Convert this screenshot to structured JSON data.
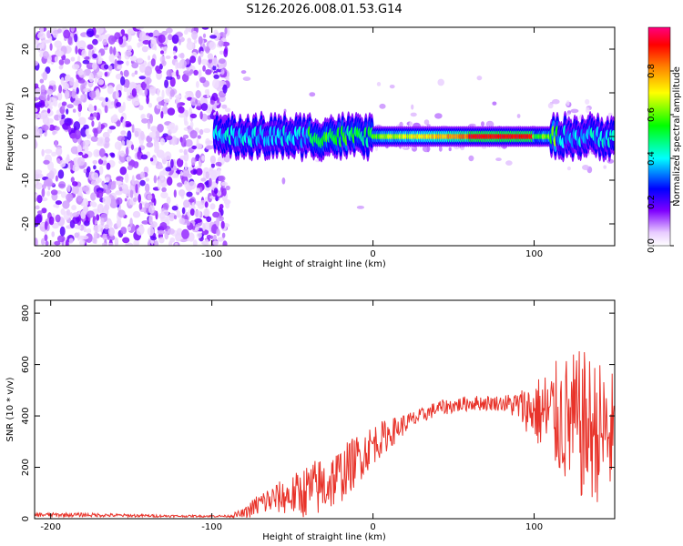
{
  "title": "S126.2026.008.01.53.G14",
  "chart_data": [
    {
      "type": "heatmap",
      "title": "S126.2026.008.01.53.G14",
      "xlabel": "Height of straight line (km)",
      "ylabel": "Frequency (Hz)",
      "xlim": [
        -210,
        150
      ],
      "ylim": [
        -25,
        25
      ],
      "xticks": [
        -200,
        -100,
        0,
        100
      ],
      "yticks": [
        20,
        10,
        0,
        -10,
        -20
      ],
      "colorbar": {
        "label": "Normalized spectral amplitude",
        "range": [
          0,
          1
        ],
        "ticks": [
          0.0,
          0.2,
          0.4,
          0.6,
          0.8
        ],
        "tick_labels": [
          "0.0",
          "0.2",
          "0.4",
          "0.6",
          "0.8"
        ],
        "colormap": [
          "#ffffff",
          "#e8ccff",
          "#7f00ff",
          "#0000ff",
          "#00ffff",
          "#00ff00",
          "#ffff00",
          "#ff8000",
          "#ff0000",
          "#ff0080"
        ]
      },
      "regions": [
        {
          "x_range": [
            -210,
            -90
          ],
          "description_value": "noise",
          "amplitude": 0.15
        },
        {
          "x_range": [
            -100,
            150
          ],
          "frequency": 0,
          "amplitude_peak": 0.95,
          "peak_x_range": [
            60,
            100
          ]
        }
      ]
    },
    {
      "type": "line",
      "xlabel": "Height of straight line (km)",
      "ylabel": "SNR (10 * v/v)",
      "xlim": [
        -210,
        150
      ],
      "ylim": [
        0,
        850
      ],
      "xticks": [
        -200,
        -100,
        0,
        100
      ],
      "yticks": [
        0,
        200,
        400,
        600,
        800
      ],
      "color": "#e8332a",
      "series_envelope": {
        "x": [
          -210,
          -180,
          -150,
          -120,
          -90,
          -80,
          -70,
          -60,
          -50,
          -40,
          -30,
          -20,
          -10,
          0,
          10,
          20,
          30,
          40,
          50,
          60,
          70,
          80,
          90,
          100,
          110,
          120,
          130,
          140,
          150
        ],
        "mean": [
          15,
          15,
          12,
          10,
          10,
          20,
          60,
          80,
          90,
          110,
          130,
          170,
          230,
          290,
          330,
          370,
          400,
          430,
          440,
          450,
          450,
          450,
          440,
          420,
          400,
          380,
          360,
          340,
          320
        ],
        "spread": [
          8,
          8,
          6,
          4,
          4,
          20,
          50,
          60,
          80,
          110,
          120,
          110,
          100,
          80,
          60,
          40,
          30,
          30,
          30,
          30,
          30,
          30,
          60,
          120,
          200,
          260,
          300,
          280,
          250
        ]
      }
    }
  ]
}
